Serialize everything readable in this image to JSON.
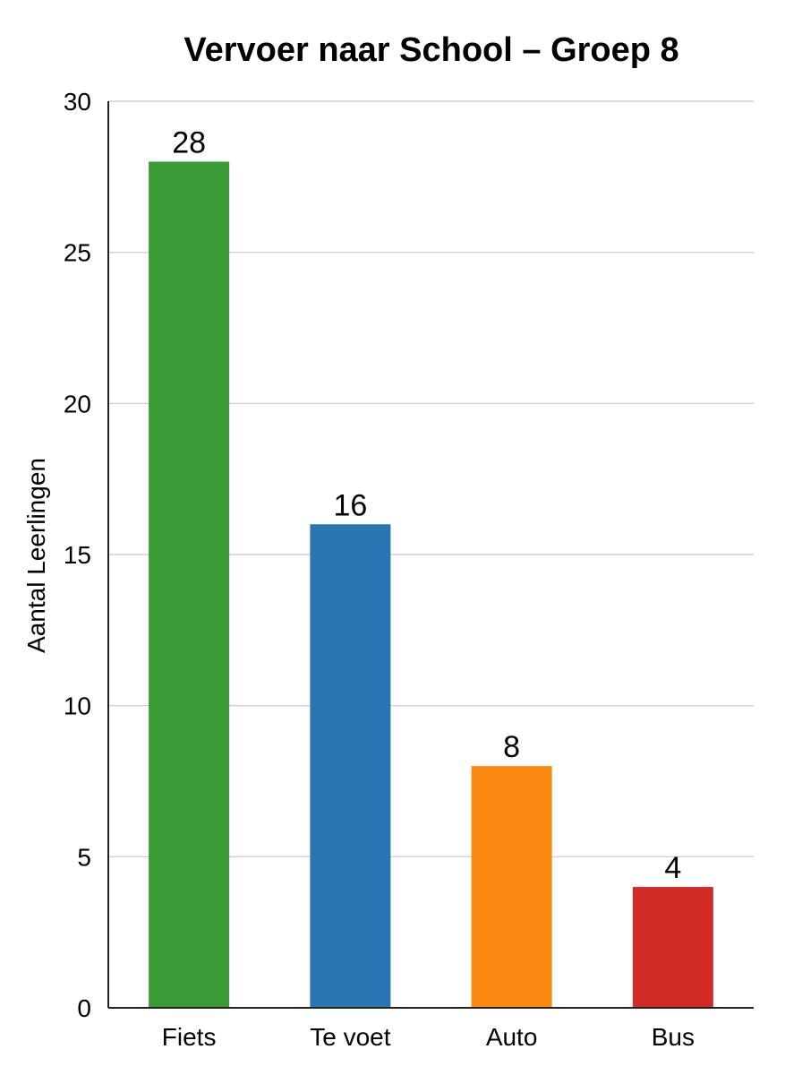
{
  "chart_data": {
    "type": "bar",
    "title": "Vervoer naar School – Groep 8",
    "xlabel": "",
    "ylabel": "Aantal Leerlingen",
    "categories": [
      "Fiets",
      "Te voet",
      "Auto",
      "Bus"
    ],
    "values": [
      28,
      16,
      8,
      4
    ],
    "data_labels": [
      "28",
      "16",
      "8",
      "4"
    ],
    "colors": [
      "#3a9a35",
      "#2a76b3",
      "#fb8a12",
      "#d22a26"
    ],
    "ylim": [
      0,
      30
    ],
    "yticks": [
      0,
      5,
      10,
      15,
      20,
      25,
      30
    ],
    "ytick_labels": [
      "0",
      "5",
      "10",
      "15",
      "20",
      "25",
      "30"
    ],
    "grid": true,
    "grid_color": "#c8c8c8",
    "legend": "none"
  }
}
